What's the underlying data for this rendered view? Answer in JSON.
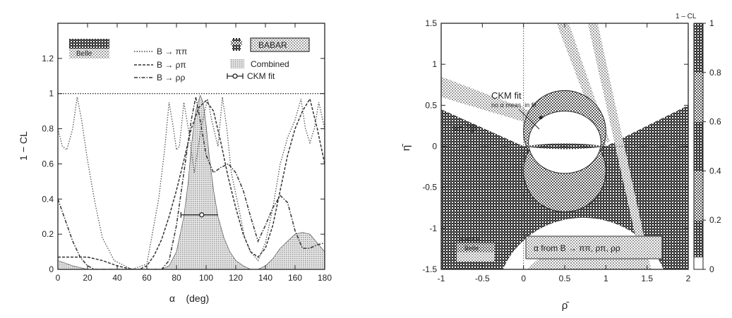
{
  "colors": {
    "ink": "#222222",
    "dark_hatch": "#3a3a3a",
    "medium_hatch": "#777777",
    "light_hatch": "#b5b5b5",
    "paper": "#ffffff"
  },
  "chart_data": [
    {
      "type": "line",
      "xlabel": "α    (deg)",
      "ylabel": "1 − CL",
      "xlim": [
        0,
        180
      ],
      "ylim": [
        0,
        1.4
      ],
      "xticks": [
        "0",
        "20",
        "40",
        "60",
        "80",
        "100",
        "120",
        "140",
        "160",
        "180"
      ],
      "yticks": [
        "0",
        "0.2",
        "0.4",
        "0.6",
        "0.8",
        "1",
        "1.2"
      ],
      "grid": false,
      "legend_position": "top",
      "legend": {
        "exp_labels": [
          "BABAR",
          "Belle"
        ],
        "series_labels": [
          "B → ππ",
          "B → ρπ",
          "B → ρρ",
          "Combined",
          "CKM fit"
        ]
      },
      "reference_line": 1,
      "series": [
        {
          "name": "B → ππ",
          "style": "dotted",
          "x": [
            0,
            3,
            6,
            10,
            13,
            16,
            20,
            25,
            30,
            38,
            50,
            60,
            68,
            72,
            75,
            78,
            80,
            82,
            85,
            88,
            92,
            97,
            101,
            104,
            108,
            111,
            114,
            117,
            122,
            126,
            130,
            135,
            140,
            145,
            150,
            155,
            160,
            164,
            167,
            170,
            173,
            176,
            180
          ],
          "y": [
            0.8,
            0.7,
            0.68,
            0.8,
            0.98,
            0.85,
            0.62,
            0.38,
            0.18,
            0.05,
            0.0,
            0.03,
            0.4,
            0.68,
            0.95,
            0.8,
            0.68,
            0.7,
            0.95,
            0.8,
            0.55,
            0.82,
            0.97,
            0.84,
            0.7,
            0.98,
            0.8,
            0.55,
            0.35,
            0.18,
            0.1,
            0.05,
            0.15,
            0.35,
            0.6,
            0.75,
            0.85,
            0.97,
            0.8,
            0.72,
            0.8,
            0.95,
            0.8
          ]
        },
        {
          "name": "B → ρπ",
          "style": "dashed",
          "x": [
            0,
            10,
            20,
            30,
            40,
            50,
            55,
            60,
            65,
            70,
            75,
            80,
            85,
            90,
            95,
            100,
            105,
            110,
            115,
            120,
            125,
            130,
            135,
            140,
            145,
            150,
            155,
            160,
            165,
            170,
            175,
            180
          ],
          "y": [
            0.07,
            0.07,
            0.07,
            0.05,
            0.02,
            0.0,
            0.0,
            0.02,
            0.08,
            0.17,
            0.3,
            0.45,
            0.62,
            0.8,
            0.92,
            0.96,
            0.9,
            0.72,
            0.52,
            0.35,
            0.2,
            0.1,
            0.07,
            0.12,
            0.25,
            0.45,
            0.65,
            0.8,
            0.9,
            0.97,
            0.8,
            0.6
          ]
        },
        {
          "name": "B → ρρ",
          "style": "dashdot",
          "x": [
            0,
            5,
            10,
            15,
            20,
            25,
            30,
            35,
            40,
            50,
            60,
            70,
            75,
            80,
            85,
            90,
            93,
            96,
            100,
            105,
            110,
            115,
            120,
            125,
            130,
            135,
            140,
            145,
            150,
            155,
            160,
            165,
            170,
            175,
            180
          ],
          "y": [
            0.4,
            0.28,
            0.16,
            0.07,
            0.02,
            0.0,
            0.0,
            0.0,
            0.0,
            0.0,
            0.0,
            0.0,
            0.05,
            0.25,
            0.55,
            0.85,
            0.98,
            0.85,
            0.65,
            0.55,
            0.58,
            0.6,
            0.55,
            0.45,
            0.3,
            0.16,
            0.25,
            0.35,
            0.42,
            0.38,
            0.22,
            0.12,
            0.12,
            0.14,
            0.15
          ]
        },
        {
          "name": "Combined",
          "style": "filled",
          "x": [
            0,
            10,
            20,
            30,
            40,
            50,
            60,
            70,
            75,
            80,
            85,
            88,
            90,
            93,
            96,
            98,
            100,
            102,
            105,
            108,
            112,
            116,
            120,
            125,
            130,
            135,
            140,
            145,
            150,
            155,
            160,
            165,
            170,
            175,
            180
          ],
          "y": [
            0.05,
            0.02,
            0.0,
            0.0,
            0.0,
            0.0,
            0.0,
            0.0,
            0.02,
            0.1,
            0.3,
            0.5,
            0.7,
            0.9,
            0.99,
            0.95,
            0.82,
            0.65,
            0.45,
            0.3,
            0.18,
            0.1,
            0.05,
            0.02,
            0.0,
            0.0,
            0.02,
            0.06,
            0.12,
            0.16,
            0.2,
            0.21,
            0.2,
            0.15,
            0.1
          ]
        }
      ],
      "ckm_fit": {
        "center": 97,
        "low": 83,
        "high": 108,
        "y": 0.31
      }
    },
    {
      "type": "heatmap",
      "xlabel": "ρ̄",
      "ylabel": "η̄",
      "xlim": [
        -1,
        2
      ],
      "ylim": [
        -1.5,
        1.5
      ],
      "xticks": [
        "-1",
        "-0.5",
        "0",
        "0.5",
        "1",
        "1.5",
        "2"
      ],
      "yticks": [
        "-1.5",
        "-1",
        "-0.5",
        "0",
        "0.5",
        "1",
        "1.5"
      ],
      "colorbar": {
        "title": "1 – CL",
        "range": [
          0,
          1
        ],
        "ticks": [
          "0",
          "0.2",
          "0.4",
          "0.6",
          "0.8",
          "1"
        ]
      },
      "annotations": {
        "ckm_fit": "CKM fit",
        "ckm_fit_sub": "no α meas. in fit",
        "sin2beta": "sin 2β",
        "alpha_label": "α from B → ππ, ρπ, ρρ",
        "exp_labels": [
          "BABAR",
          "Belle"
        ]
      },
      "regions": {
        "alpha_circles": [
          {
            "center": [
              0.5,
              0.18
            ],
            "radius": 0.5
          },
          {
            "center": [
              0.5,
              -0.3
            ],
            "radius": 0.5
          }
        ],
        "sin2beta_band": {
          "slope_from_point": [
            1,
            0
          ],
          "angle_deg": 21.7
        },
        "ckm_fit_point": [
          0.21,
          0.35
        ]
      }
    }
  ]
}
